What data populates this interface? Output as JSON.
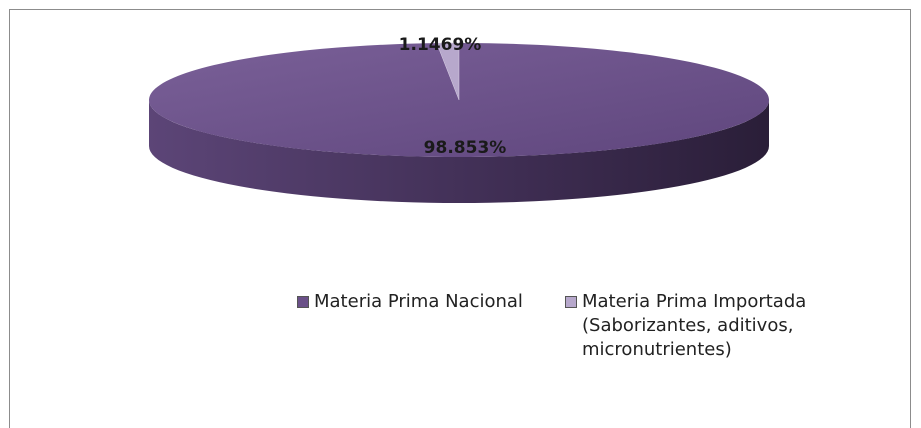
{
  "chart_data": {
    "type": "pie",
    "categories": [
      "Materia Prima Nacional",
      "Materia Prima Importada\n(Saborizantes, aditivos, micronutrientes)"
    ],
    "values": [
      98.853,
      1.1469
    ],
    "value_labels": [
      "98.853%",
      "1.1469%"
    ],
    "colors": [
      "#6a5088",
      "#b7a8cc"
    ],
    "legend": "bottom"
  }
}
